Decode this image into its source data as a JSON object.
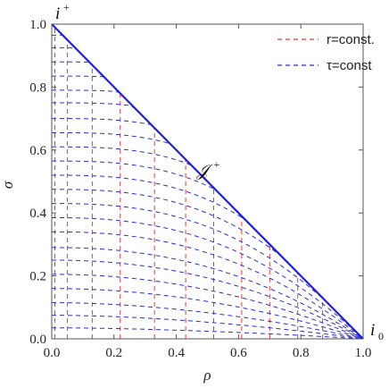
{
  "chart_data": {
    "type": "line",
    "xlabel": "ρ",
    "ylabel": "σ",
    "xlim": [
      0,
      1
    ],
    "ylim": [
      0,
      1
    ],
    "x_ticks": [
      "0.0",
      "0.2",
      "0.4",
      "0.6",
      "0.8",
      "1.0"
    ],
    "y_ticks": [
      "0.0",
      "0.2",
      "0.4",
      "0.6",
      "0.8",
      "1.0"
    ],
    "grid": false,
    "legend_position": "top-right",
    "series": [
      {
        "name": "r=const.",
        "color": "#e8383d",
        "style": "dashed",
        "description": "vertical lines ρ = const, clipped by boundary σ = 1 − ρ",
        "rho_values": [
          0.01,
          0.05,
          0.13,
          0.22,
          0.33,
          0.43,
          0.52,
          0.61,
          0.7,
          0.79,
          0.87
        ]
      },
      {
        "name": "τ=const",
        "color": "#2b2bd6",
        "style": "dashed",
        "description": "hyperboloidal curves approaching boundary",
        "sigma_intercepts": [
          0.035,
          0.075,
          0.115,
          0.16,
          0.205,
          0.25,
          0.29,
          0.34,
          0.385,
          0.43,
          0.475,
          0.52,
          0.565,
          0.61,
          0.655,
          0.7,
          0.75,
          0.79,
          0.835,
          0.88,
          0.925,
          0.965
        ]
      },
      {
        "name": "boundary",
        "color": "#1f1fe0",
        "style": "solid",
        "points": [
          [
            0,
            1
          ],
          [
            1,
            0
          ]
        ]
      }
    ],
    "annotations": [
      {
        "text": "i",
        "sup": "+",
        "x": 0.0,
        "y": 1.0
      },
      {
        "text": "𝒥",
        "sup": "+",
        "x": 0.5,
        "y": 0.5
      },
      {
        "text": "i",
        "sub": "0",
        "x": 1.0,
        "y": 0.0
      }
    ]
  }
}
